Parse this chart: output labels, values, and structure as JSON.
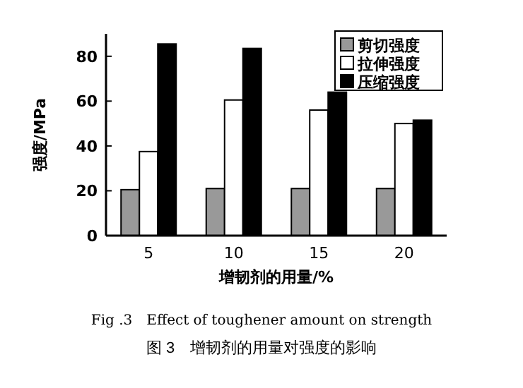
{
  "chart_data": {
    "type": "bar",
    "categories": [
      "5",
      "10",
      "15",
      "20"
    ],
    "series": [
      {
        "name": "剪切强度",
        "color": "#999999",
        "values": [
          20.5,
          21,
          21,
          21
        ]
      },
      {
        "name": "拉伸强度",
        "color": "#ffffff",
        "values": [
          37.5,
          60.5,
          56,
          50
        ]
      },
      {
        "name": "压缩强度",
        "color": "#000000",
        "values": [
          85.5,
          83.5,
          64,
          51.5
        ]
      }
    ],
    "ylim": [
      0,
      90
    ],
    "yticks": [
      0,
      20,
      40,
      60,
      80
    ],
    "xlabel": "增韧剂的用量/%",
    "ylabel": "强度/MPa",
    "legend": "top right",
    "annotations": [
      "Fig .3　Effect of toughener amount on strength",
      "图 3　增韧剂的用量对强度的影响"
    ]
  }
}
